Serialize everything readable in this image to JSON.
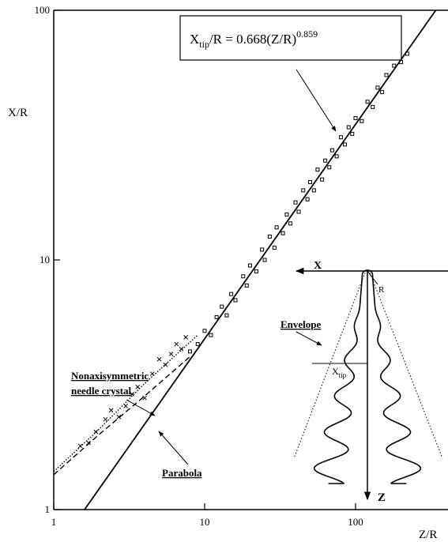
{
  "chart_data": {
    "type": "scatter",
    "log_x": true,
    "log_y": true,
    "xlabel": "Z/R",
    "ylabel": "X/R",
    "xlim": [
      1,
      400
    ],
    "ylim": [
      1,
      100
    ],
    "xticks": [
      1,
      10,
      100
    ],
    "yticks": [
      1,
      10,
      100
    ],
    "equation": {
      "base": "X",
      "sub": "tip",
      "middle": "/R = 0.668(Z/R)",
      "sup": "0.859"
    },
    "annotations": [
      "Nonaxisymmetric",
      "needle crystal",
      "Parabola"
    ],
    "inset": {
      "x_axis": "X",
      "radius": "R",
      "envelope": "Envelope",
      "tip_base": "X",
      "tip_sub": "tip",
      "z_axis": "Z"
    },
    "series": [
      {
        "style": "square",
        "color": "#000",
        "x": [
          8,
          9,
          10,
          11,
          12,
          13,
          14,
          15,
          16,
          18,
          19,
          20,
          22,
          24,
          25,
          27,
          29,
          30,
          33,
          35,
          37,
          40,
          42,
          45,
          48,
          50,
          53,
          56,
          60,
          63,
          67,
          70,
          75,
          80,
          85,
          90,
          95,
          100,
          110,
          120,
          130,
          140,
          150,
          160,
          180,
          200,
          220
        ],
        "values": [
          4.3,
          4.6,
          5.2,
          5.0,
          5.9,
          6.5,
          6.0,
          7.3,
          6.9,
          8.6,
          7.9,
          9.5,
          9.0,
          11.0,
          10.0,
          12.4,
          11.2,
          13.5,
          12.8,
          15.2,
          14.0,
          17.0,
          15.6,
          19.0,
          17.5,
          20.5,
          19.0,
          23.0,
          21.0,
          25.0,
          23.5,
          27.5,
          26.0,
          31.0,
          29.0,
          34.0,
          32.0,
          37.0,
          36.0,
          43.0,
          41.0,
          49.0,
          47.0,
          55.0,
          60.0,
          62.0,
          67.0
        ]
      },
      {
        "style": "cross",
        "color": "#000",
        "x": [
          1.5,
          1.7,
          1.9,
          2.2,
          2.4,
          2.7,
          3.0,
          3.3,
          3.6,
          4.0,
          4.5,
          5.0,
          5.5,
          6.0,
          6.5,
          7.0,
          7.5
        ],
        "values": [
          1.8,
          1.85,
          2.05,
          2.3,
          2.5,
          2.35,
          2.6,
          2.9,
          3.1,
          2.8,
          3.5,
          4.0,
          3.8,
          4.2,
          4.6,
          4.4,
          4.9
        ]
      },
      {
        "style": "solid",
        "color": "#000",
        "x": [
          1.6,
          340
        ],
        "values": [
          1.0,
          100
        ]
      },
      {
        "style": "dashed",
        "color": "#000",
        "x": [
          1,
          2,
          4,
          8
        ],
        "values": [
          1.38,
          2.0,
          2.85,
          4.1
        ]
      },
      {
        "style": "dotted",
        "color": "#000",
        "x": [
          1,
          2,
          4,
          9
        ],
        "values": [
          1.42,
          2.1,
          3.2,
          5.0
        ]
      }
    ]
  }
}
